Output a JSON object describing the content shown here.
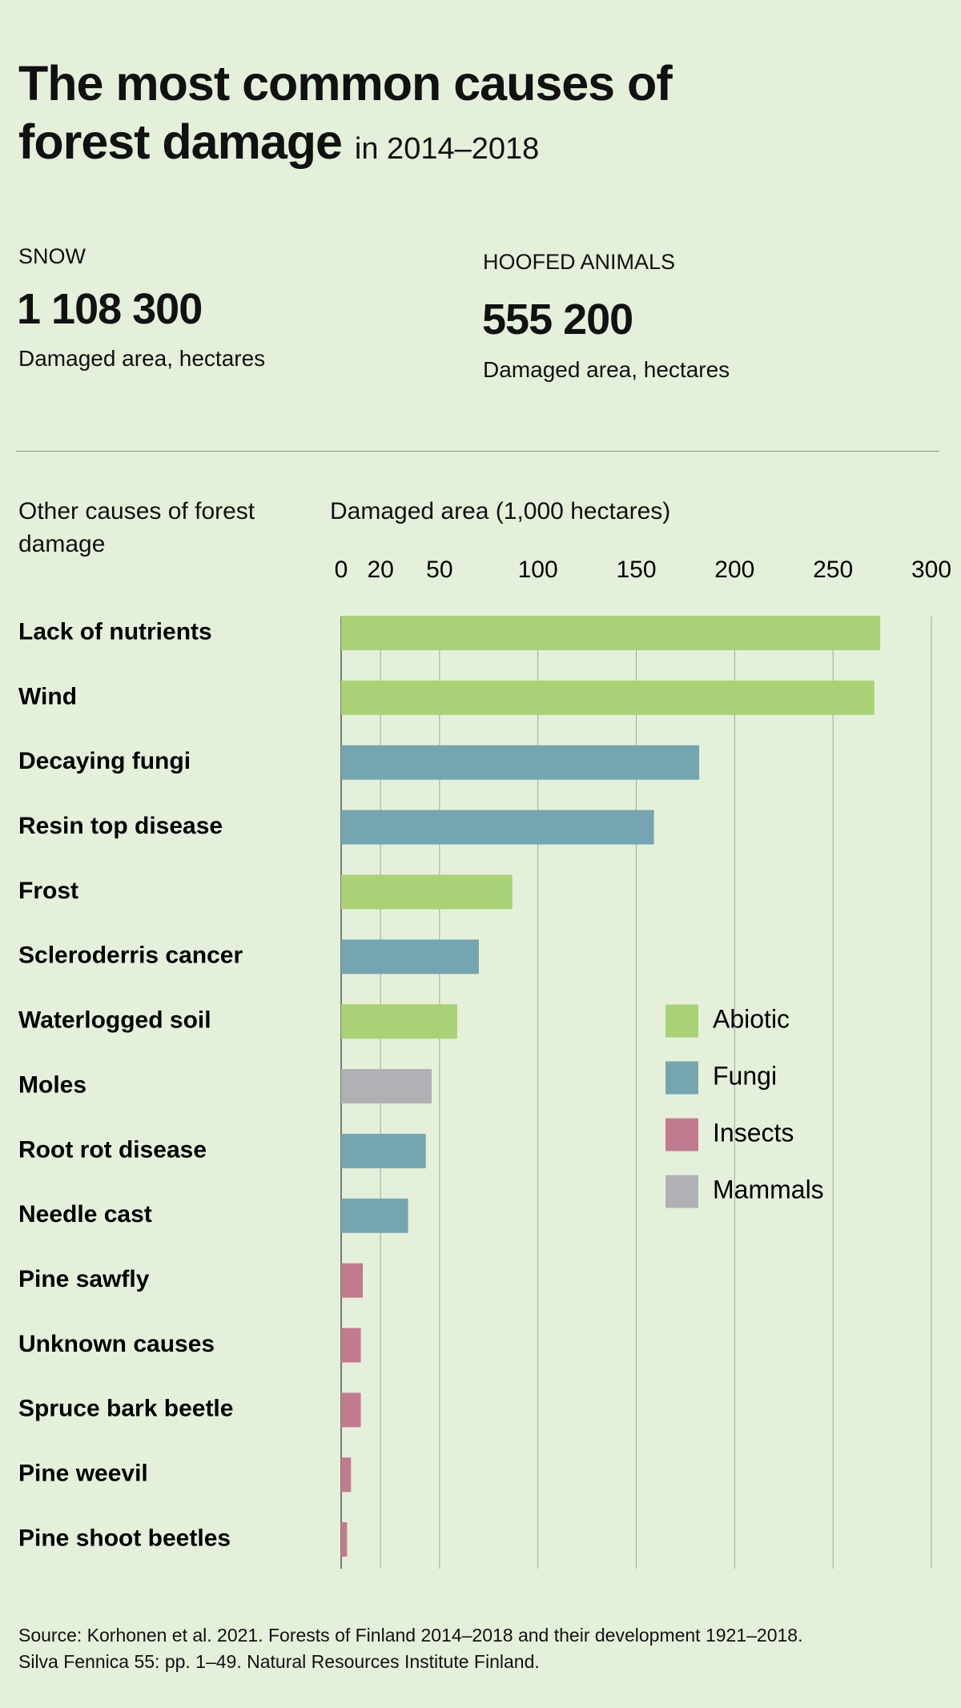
{
  "header": {
    "title": "The most common causes of forest damage",
    "subtitle": "in 2014–2018"
  },
  "highlights": [
    {
      "label": "SNOW",
      "value": "1 108 300",
      "unit": "Damaged area, hectares"
    },
    {
      "label": "HOOFED ANIMALS",
      "value": "555 200",
      "unit": "Damaged area, hectares"
    }
  ],
  "chart_data": {
    "type": "bar",
    "orientation": "horizontal",
    "category_title": "Other causes of forest damage",
    "x_label": "Damaged area (1,000 hectares)",
    "categories": [
      "Lack of nutrients",
      "Wind",
      "Decaying fungi",
      "Resin top disease",
      "Frost",
      "Scleroderris cancer",
      "Waterlogged soil",
      "Moles",
      "Root rot disease",
      "Needle cast",
      "Pine sawfly",
      "Unknown causes",
      "Spruce bark beetle",
      "Pine weevil",
      "Pine shoot beetles"
    ],
    "series": [
      {
        "name": "Abiotic",
        "color": "#a8d275",
        "values": [
          274,
          271,
          null,
          null,
          87,
          null,
          59,
          null,
          null,
          null,
          null,
          null,
          null,
          null,
          null
        ]
      },
      {
        "name": "Fungi",
        "color": "#74a5b1",
        "values": [
          null,
          null,
          182,
          159,
          null,
          70,
          null,
          null,
          43,
          34,
          null,
          null,
          null,
          null,
          null
        ]
      },
      {
        "name": "Insects",
        "color": "#c27b8e",
        "values": [
          null,
          null,
          null,
          null,
          null,
          null,
          null,
          null,
          null,
          null,
          11,
          10,
          10,
          5,
          3
        ]
      },
      {
        "name": "Mammals",
        "color": "#b1b1b5",
        "values": [
          null,
          null,
          null,
          null,
          null,
          null,
          null,
          46,
          null,
          null,
          null,
          null,
          null,
          null,
          null
        ]
      }
    ],
    "xlim": [
      0,
      300
    ],
    "xticks": [
      0,
      20,
      50,
      100,
      150,
      200,
      250,
      300
    ],
    "grid": true
  },
  "source": [
    "Source: Korhonen et al. 2021. Forests of Finland 2014–2018 and their development 1921–2018.",
    "Silva Fennica 55: pp. 1–49. Natural Resources Institute Finland."
  ]
}
